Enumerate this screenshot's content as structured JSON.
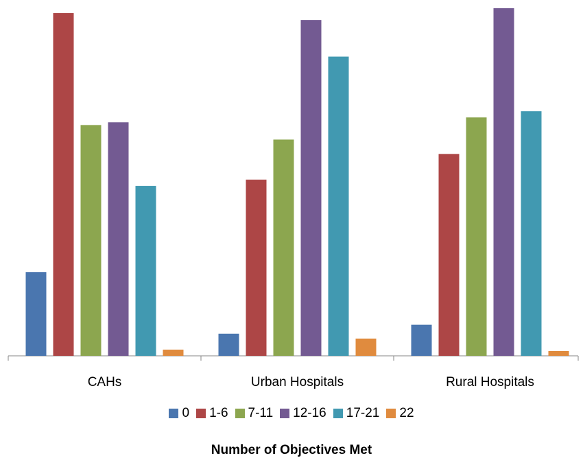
{
  "chart_data": {
    "type": "bar",
    "categories": [
      "CAHs",
      "Urban Hospitals",
      "Rural Hospitals"
    ],
    "series": [
      {
        "name": "0",
        "color": "#4A76AF",
        "values": [
          12.1,
          3.2,
          4.5
        ]
      },
      {
        "name": "1-6",
        "color": "#AD4646",
        "values": [
          49.6,
          25.5,
          29.2
        ]
      },
      {
        "name": "7-11",
        "color": "#8CA64F",
        "values": [
          33.4,
          31.3,
          34.5
        ]
      },
      {
        "name": "12-16",
        "color": "#735A92",
        "values": [
          33.8,
          48.6,
          50.3
        ]
      },
      {
        "name": "17-21",
        "color": "#4199B1",
        "values": [
          24.6,
          43.3,
          35.4
        ]
      },
      {
        "name": "22",
        "color": "#E08B3E",
        "values": [
          0.9,
          2.5,
          0.7
        ]
      }
    ],
    "xlabel": "Number of Objectives Met",
    "ylabel": "",
    "ylim": [
      0,
      50.3
    ],
    "grid": false,
    "legend_position": "bottom"
  }
}
